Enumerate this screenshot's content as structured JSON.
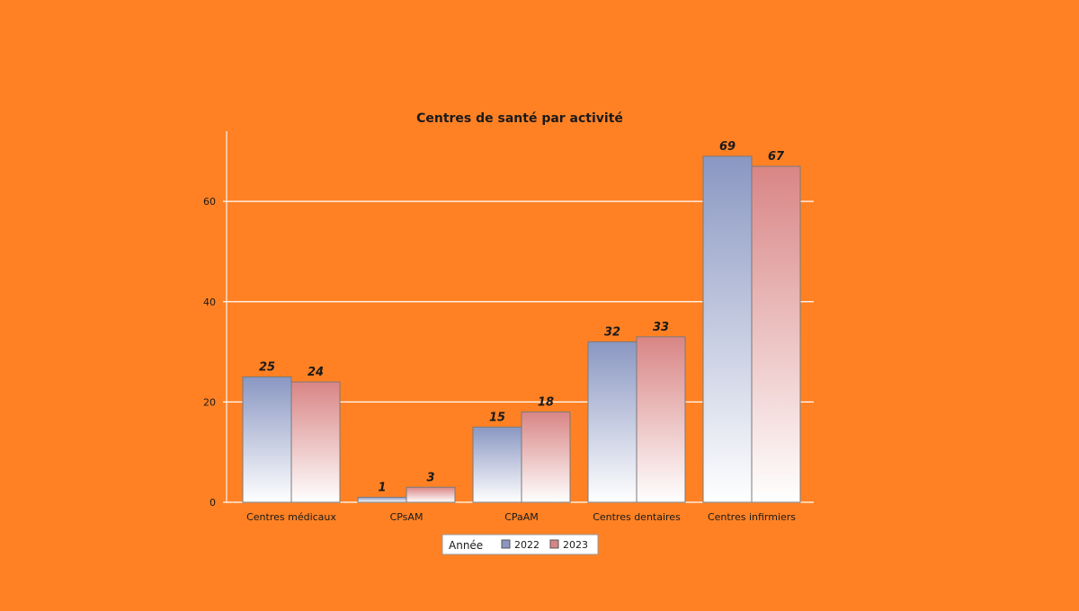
{
  "chart_data": {
    "type": "bar",
    "title": "Centres de santé par activité",
    "categories": [
      "Centres médicaux",
      "CPsAM",
      "CPaAM",
      "Centres dentaires",
      "Centres infirmiers"
    ],
    "series": [
      {
        "name": "2022",
        "values": [
          25,
          1,
          15,
          32,
          69
        ],
        "color": "#8a97c2"
      },
      {
        "name": "2023",
        "values": [
          24,
          3,
          18,
          33,
          67
        ],
        "color": "#d98585"
      }
    ],
    "yticks": [
      0,
      20,
      40,
      60
    ],
    "ylim": [
      0,
      74
    ],
    "grid": true,
    "data_labels": true,
    "legend": {
      "title": "Année",
      "placement": "bottom-center"
    },
    "colors": {
      "background": "#ff8124",
      "grid": "#ffffff",
      "text": "#1a1a1a"
    }
  }
}
